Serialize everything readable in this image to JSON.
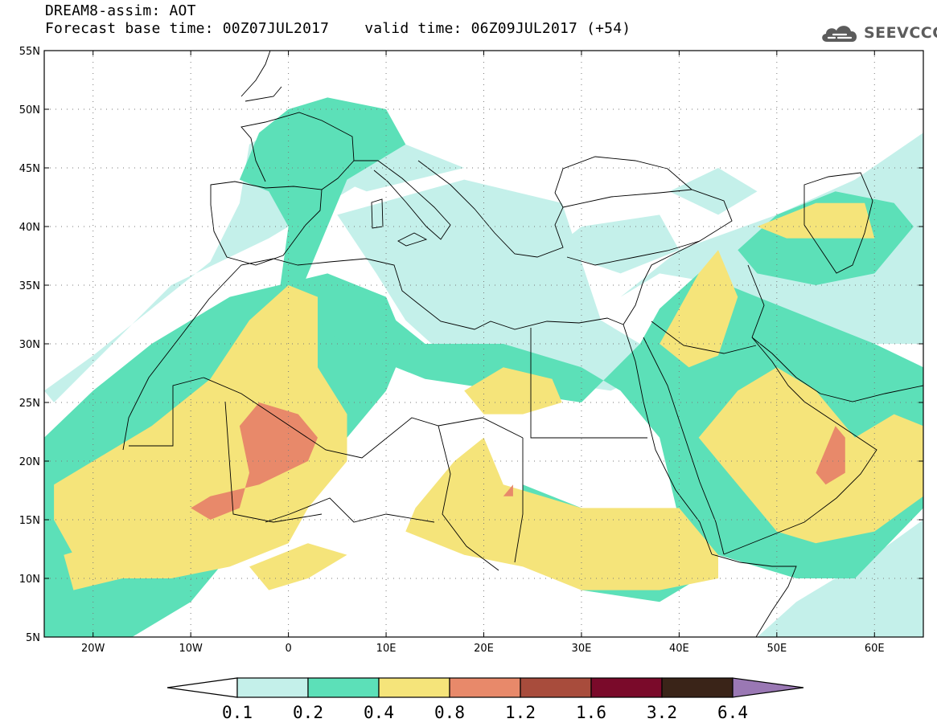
{
  "header": {
    "line1": "DREAM8-assim: AOT",
    "base_time": "Forecast base time: 00Z07JUL2017",
    "valid_time": "valid time: 06Z09JUL2017 (+54)"
  },
  "logo": {
    "icon": "cloud-icon",
    "text": "SEEVCCC",
    "color": "#5c5c5c"
  },
  "map": {
    "lon_range": [
      -25,
      65
    ],
    "lat_range": [
      5,
      55
    ],
    "lon_ticks": [
      {
        "value": -20,
        "label": "20W"
      },
      {
        "value": -10,
        "label": "10W"
      },
      {
        "value": 0,
        "label": "0"
      },
      {
        "value": 10,
        "label": "10E"
      },
      {
        "value": 20,
        "label": "20E"
      },
      {
        "value": 30,
        "label": "30E"
      },
      {
        "value": 40,
        "label": "40E"
      },
      {
        "value": 50,
        "label": "50E"
      },
      {
        "value": 60,
        "label": "60E"
      }
    ],
    "lat_ticks": [
      {
        "value": 5,
        "label": "5N"
      },
      {
        "value": 10,
        "label": "10N"
      },
      {
        "value": 15,
        "label": "15N"
      },
      {
        "value": 20,
        "label": "20N"
      },
      {
        "value": 25,
        "label": "25N"
      },
      {
        "value": 30,
        "label": "30N"
      },
      {
        "value": 35,
        "label": "35N"
      },
      {
        "value": 40,
        "label": "40N"
      },
      {
        "value": 45,
        "label": "45N"
      },
      {
        "value": 50,
        "label": "50N"
      },
      {
        "value": 55,
        "label": "55N"
      }
    ],
    "grid": "dotted",
    "coastline_color": "#000000"
  },
  "colorbar": {
    "thresholds": [
      "0.1",
      "0.2",
      "0.4",
      "0.8",
      "1.2",
      "1.6",
      "3.2",
      "6.4"
    ],
    "colors": [
      "#ffffff",
      "#c4f0ea",
      "#5ce0b8",
      "#f5e47a",
      "#e8896a",
      "#a84c3c",
      "#7a0a2a",
      "#3a2418",
      "#9a78b4"
    ]
  },
  "aot_regions": {
    "level_0.1": [
      [
        [
          -24,
          25
        ],
        [
          -18,
          30
        ],
        [
          -12,
          35
        ],
        [
          -2,
          39
        ],
        [
          8,
          44
        ],
        [
          0,
          49
        ],
        [
          -4,
          47
        ],
        [
          -5,
          42
        ],
        [
          -8,
          37
        ],
        [
          -14,
          33
        ],
        [
          -20,
          29
        ],
        [
          -25,
          26
        ]
      ],
      [
        [
          5,
          41
        ],
        [
          18,
          44
        ],
        [
          28,
          42
        ],
        [
          32,
          32
        ],
        [
          36,
          30
        ],
        [
          38,
          28
        ],
        [
          33,
          26
        ],
        [
          25,
          27
        ],
        [
          16,
          29
        ],
        [
          12,
          32
        ],
        [
          9,
          36
        ]
      ],
      [
        [
          34,
          34
        ],
        [
          40,
          38
        ],
        [
          50,
          41
        ],
        [
          58,
          44
        ],
        [
          65,
          48
        ],
        [
          65,
          30
        ],
        [
          58,
          30
        ],
        [
          52,
          32
        ],
        [
          45,
          35
        ],
        [
          38,
          36
        ]
      ],
      [
        [
          60,
          12
        ],
        [
          52,
          8
        ],
        [
          48,
          5
        ],
        [
          65,
          5
        ],
        [
          65,
          15
        ]
      ],
      [
        [
          -25,
          13
        ],
        [
          -18,
          12
        ],
        [
          -14,
          6
        ],
        [
          -25,
          5
        ]
      ],
      [
        [
          -1,
          46
        ],
        [
          2,
          49
        ],
        [
          12,
          47
        ],
        [
          18,
          45
        ],
        [
          8,
          43
        ]
      ],
      [
        [
          27,
          38
        ],
        [
          30,
          40
        ],
        [
          38,
          41
        ],
        [
          40,
          38
        ],
        [
          34,
          36
        ]
      ],
      [
        [
          39,
          43
        ],
        [
          44,
          45
        ],
        [
          48,
          43
        ],
        [
          44,
          41
        ]
      ]
    ],
    "level_0.2": [
      [
        [
          -25,
          22
        ],
        [
          -20,
          26
        ],
        [
          -14,
          30
        ],
        [
          -6,
          34
        ],
        [
          4,
          36
        ],
        [
          10,
          34
        ],
        [
          12,
          30
        ],
        [
          10,
          26
        ],
        [
          6,
          22
        ],
        [
          0,
          18
        ],
        [
          -6,
          12
        ],
        [
          -10,
          8
        ],
        [
          -16,
          5
        ],
        [
          -25,
          5
        ]
      ],
      [
        [
          2,
          34
        ],
        [
          8,
          34
        ],
        [
          14,
          30
        ],
        [
          22,
          30
        ],
        [
          30,
          28
        ],
        [
          34,
          26
        ],
        [
          38,
          22
        ],
        [
          40,
          15
        ],
        [
          44,
          12
        ],
        [
          52,
          10
        ],
        [
          58,
          10
        ],
        [
          65,
          16
        ],
        [
          65,
          28
        ],
        [
          60,
          30
        ],
        [
          54,
          32
        ],
        [
          48,
          34
        ],
        [
          42,
          36
        ],
        [
          38,
          33
        ],
        [
          36,
          30
        ],
        [
          30,
          25
        ],
        [
          22,
          26
        ],
        [
          14,
          27
        ],
        [
          8,
          29
        ],
        [
          4,
          31
        ]
      ],
      [
        [
          -5,
          44
        ],
        [
          -3,
          48
        ],
        [
          0,
          50
        ],
        [
          4,
          51
        ],
        [
          10,
          50
        ],
        [
          12,
          47
        ],
        [
          6,
          44
        ],
        [
          3,
          38
        ],
        [
          1,
          34
        ],
        [
          -1,
          34
        ],
        [
          0,
          40
        ],
        [
          -2,
          43
        ]
      ],
      [
        [
          46,
          38
        ],
        [
          50,
          41
        ],
        [
          56,
          43
        ],
        [
          62,
          42
        ],
        [
          64,
          40
        ],
        [
          60,
          36
        ],
        [
          54,
          35
        ],
        [
          48,
          36
        ]
      ],
      [
        [
          -25,
          18
        ],
        [
          -19,
          20
        ],
        [
          -14,
          16
        ],
        [
          -10,
          12
        ],
        [
          -14,
          9
        ],
        [
          -22,
          9
        ],
        [
          -25,
          11
        ]
      ],
      [
        [
          24,
          18
        ],
        [
          30,
          16
        ],
        [
          38,
          14
        ],
        [
          44,
          11
        ],
        [
          38,
          8
        ],
        [
          30,
          9
        ],
        [
          24,
          12
        ]
      ],
      [
        [
          46,
          22
        ],
        [
          52,
          24
        ],
        [
          58,
          22
        ],
        [
          62,
          18
        ],
        [
          58,
          14
        ],
        [
          50,
          16
        ]
      ]
    ],
    "level_0.4": [
      [
        [
          -24,
          18
        ],
        [
          -20,
          20
        ],
        [
          -14,
          23
        ],
        [
          -8,
          27
        ],
        [
          -4,
          32
        ],
        [
          0,
          35
        ],
        [
          3,
          34
        ],
        [
          3,
          28
        ],
        [
          6,
          24
        ],
        [
          6,
          20
        ],
        [
          2,
          16
        ],
        [
          0,
          13
        ],
        [
          -6,
          11
        ],
        [
          -12,
          10
        ],
        [
          -18,
          10
        ],
        [
          -22,
          12
        ],
        [
          -24,
          15
        ]
      ],
      [
        [
          13,
          16
        ],
        [
          17,
          20
        ],
        [
          20,
          22
        ],
        [
          22,
          18
        ],
        [
          26,
          17
        ],
        [
          30,
          16
        ],
        [
          36,
          16
        ],
        [
          40,
          16
        ],
        [
          44,
          12
        ],
        [
          44,
          10
        ],
        [
          38,
          9
        ],
        [
          30,
          9
        ],
        [
          24,
          11
        ],
        [
          18,
          12
        ],
        [
          12,
          14
        ]
      ],
      [
        [
          42,
          22
        ],
        [
          46,
          26
        ],
        [
          50,
          28
        ],
        [
          54,
          26
        ],
        [
          58,
          22
        ],
        [
          62,
          24
        ],
        [
          65,
          23
        ],
        [
          65,
          17
        ],
        [
          60,
          14
        ],
        [
          54,
          13
        ],
        [
          50,
          14
        ],
        [
          46,
          18
        ]
      ],
      [
        [
          38,
          30
        ],
        [
          40,
          33
        ],
        [
          42,
          36
        ],
        [
          44,
          38
        ],
        [
          46,
          34
        ],
        [
          44,
          29
        ],
        [
          41,
          28
        ]
      ],
      [
        [
          48,
          40
        ],
        [
          54,
          42
        ],
        [
          59,
          42
        ],
        [
          60,
          39
        ],
        [
          56,
          39
        ],
        [
          51,
          39
        ]
      ],
      [
        [
          18,
          26
        ],
        [
          22,
          28
        ],
        [
          27,
          27
        ],
        [
          28,
          25
        ],
        [
          24,
          24
        ],
        [
          20,
          24
        ]
      ],
      [
        [
          -4,
          11
        ],
        [
          2,
          13
        ],
        [
          6,
          12
        ],
        [
          2,
          10
        ],
        [
          -2,
          9
        ]
      ],
      [
        [
          -23,
          12
        ],
        [
          -19,
          13
        ],
        [
          -17,
          10
        ],
        [
          -22,
          9
        ]
      ]
    ],
    "level_0.8": [
      [
        [
          -5,
          23
        ],
        [
          -3,
          25
        ],
        [
          1,
          24
        ],
        [
          3,
          22
        ],
        [
          2,
          20
        ],
        [
          -3,
          18
        ],
        [
          -8,
          17
        ],
        [
          -10,
          16
        ],
        [
          -8,
          15
        ],
        [
          -5,
          16
        ],
        [
          -4,
          19
        ]
      ],
      [
        [
          54,
          19
        ],
        [
          55,
          21
        ],
        [
          56,
          23
        ],
        [
          57,
          22
        ],
        [
          57,
          19
        ],
        [
          55,
          18
        ]
      ],
      [
        [
          22,
          17
        ],
        [
          23,
          18
        ],
        [
          23,
          17
        ]
      ]
    ]
  }
}
